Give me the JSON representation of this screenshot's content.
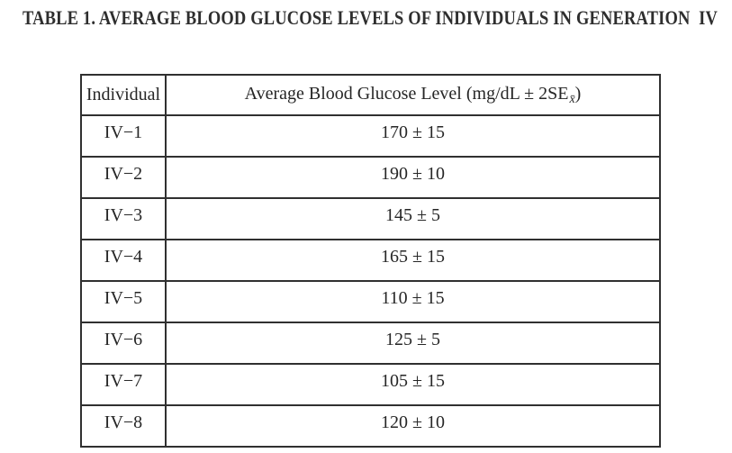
{
  "title": "TABLE 1. AVERAGE BLOOD GLUCOSE LEVELS OF INDIVIDUALS IN GENERATION  IV",
  "table": {
    "header": {
      "col1": "Individual",
      "col2_main": "Average Blood Glucose Level (mg/dL ± 2SE",
      "col2_sub": "x̄",
      "col2_close": ")"
    },
    "rows": [
      {
        "individual": "IV−1",
        "value": "170 ± 15"
      },
      {
        "individual": "IV−2",
        "value": "190 ± 10"
      },
      {
        "individual": "IV−3",
        "value": "145 ± 5"
      },
      {
        "individual": "IV−4",
        "value": "165 ± 15"
      },
      {
        "individual": "IV−5",
        "value": "110 ± 15"
      },
      {
        "individual": "IV−6",
        "value": "125 ± 5"
      },
      {
        "individual": "IV−7",
        "value": "105 ± 15"
      },
      {
        "individual": "IV−8",
        "value": "120 ± 10"
      }
    ]
  },
  "colors": {
    "text": "#262626",
    "border": "#303030",
    "background": "#ffffff"
  }
}
